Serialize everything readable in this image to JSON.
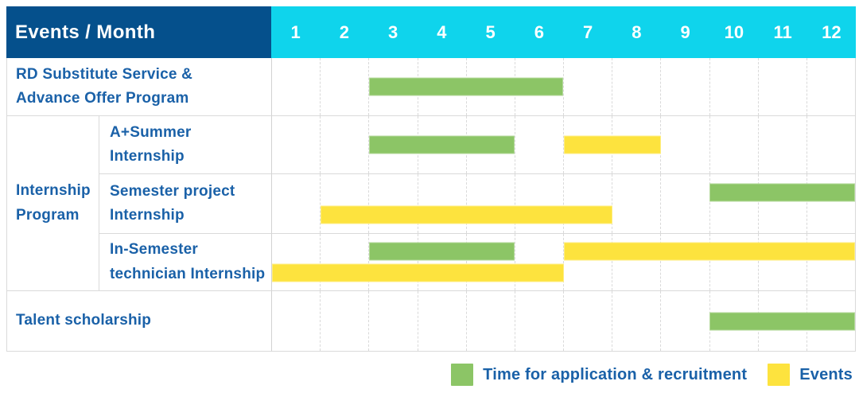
{
  "header": {
    "title": "Events / Month",
    "months": [
      "1",
      "2",
      "3",
      "4",
      "5",
      "6",
      "7",
      "8",
      "9",
      "10",
      "11",
      "12"
    ]
  },
  "chart_data": {
    "type": "gantt",
    "x_unit": "month",
    "x_range": [
      1,
      12
    ],
    "group_label": "Internship Program",
    "group_label_lines": [
      "Internship",
      "Program"
    ],
    "rows": [
      {
        "label": "RD Substitute Service & Advance Offer Program",
        "label_lines": [
          "RD Substitute Service &",
          "Advance Offer Program"
        ],
        "group": null,
        "bars": [
          {
            "kind": "application",
            "start_month": 3,
            "end_month": 6,
            "lane": "center"
          }
        ]
      },
      {
        "label": "A+Summer Internship",
        "label_lines": [
          "A+Summer",
          "Internship"
        ],
        "group": "Internship Program",
        "bars": [
          {
            "kind": "application",
            "start_month": 3,
            "end_month": 5,
            "lane": "center"
          },
          {
            "kind": "event",
            "start_month": 7,
            "end_month": 8,
            "lane": "center"
          }
        ]
      },
      {
        "label": "Semester project Internship",
        "label_lines": [
          "Semester project",
          "Internship"
        ],
        "group": "Internship Program",
        "bars": [
          {
            "kind": "application",
            "start_month": 10,
            "end_month": 12,
            "lane": "top"
          },
          {
            "kind": "event",
            "start_month": 2,
            "end_month": 7,
            "lane": "bottom"
          }
        ]
      },
      {
        "label": "In-Semester technician Internship",
        "label_lines": [
          "In-Semester",
          "technician Internship"
        ],
        "group": "Internship Program",
        "bars": [
          {
            "kind": "application",
            "start_month": 3,
            "end_month": 5,
            "lane": "top"
          },
          {
            "kind": "event",
            "start_month": 7,
            "end_month": 12,
            "lane": "top"
          },
          {
            "kind": "event",
            "start_month": 1,
            "end_month": 6,
            "lane": "bottom"
          }
        ]
      },
      {
        "label": "Talent scholarship",
        "label_lines": [
          "Talent scholarship"
        ],
        "group": null,
        "bars": [
          {
            "kind": "application",
            "start_month": 10,
            "end_month": 12,
            "lane": "center"
          }
        ]
      }
    ],
    "legend": [
      {
        "kind": "application",
        "label": "Time for application & recruitment",
        "color": "#8cc566"
      },
      {
        "kind": "event",
        "label": "Events",
        "color": "#fde33e"
      }
    ]
  },
  "colors": {
    "header_bg": "#05508c",
    "months_bg": "#0fd4ec",
    "header_text": "#ffffff",
    "label_text": "#1a61a8",
    "application_bar": "#8cc566",
    "event_bar": "#fde33e",
    "grid_line": "#dadada"
  }
}
